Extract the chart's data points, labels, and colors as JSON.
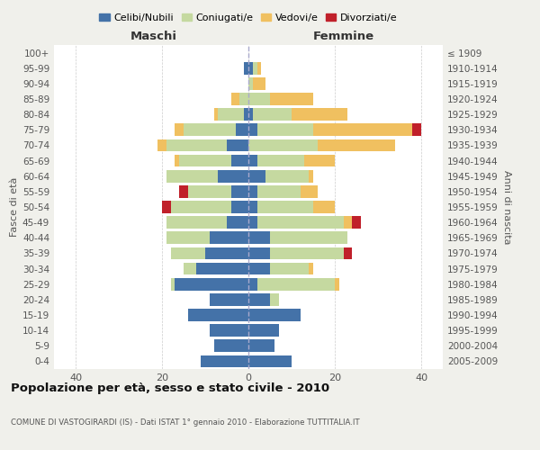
{
  "age_groups": [
    "0-4",
    "5-9",
    "10-14",
    "15-19",
    "20-24",
    "25-29",
    "30-34",
    "35-39",
    "40-44",
    "45-49",
    "50-54",
    "55-59",
    "60-64",
    "65-69",
    "70-74",
    "75-79",
    "80-84",
    "85-89",
    "90-94",
    "95-99",
    "100+"
  ],
  "birth_years": [
    "2005-2009",
    "2000-2004",
    "1995-1999",
    "1990-1994",
    "1985-1989",
    "1980-1984",
    "1975-1979",
    "1970-1974",
    "1965-1969",
    "1960-1964",
    "1955-1959",
    "1950-1954",
    "1945-1949",
    "1940-1944",
    "1935-1939",
    "1930-1934",
    "1925-1929",
    "1920-1924",
    "1915-1919",
    "1910-1914",
    "≤ 1909"
  ],
  "maschi": {
    "celibi": [
      11,
      8,
      9,
      14,
      9,
      17,
      12,
      10,
      9,
      5,
      4,
      4,
      7,
      4,
      5,
      3,
      1,
      0,
      0,
      1,
      0
    ],
    "coniugati": [
      0,
      0,
      0,
      0,
      0,
      1,
      3,
      8,
      10,
      14,
      14,
      10,
      12,
      12,
      14,
      12,
      6,
      2,
      0,
      0,
      0
    ],
    "vedovi": [
      0,
      0,
      0,
      0,
      0,
      0,
      0,
      0,
      0,
      0,
      0,
      0,
      0,
      1,
      2,
      2,
      1,
      2,
      0,
      0,
      0
    ],
    "divorziati": [
      0,
      0,
      0,
      0,
      0,
      0,
      0,
      0,
      0,
      0,
      2,
      2,
      0,
      0,
      0,
      0,
      0,
      0,
      0,
      0,
      0
    ]
  },
  "femmine": {
    "nubili": [
      10,
      6,
      7,
      12,
      5,
      2,
      5,
      5,
      5,
      2,
      2,
      2,
      4,
      2,
      0,
      2,
      1,
      0,
      0,
      1,
      0
    ],
    "coniugate": [
      0,
      0,
      0,
      0,
      2,
      18,
      9,
      17,
      18,
      20,
      13,
      10,
      10,
      11,
      16,
      13,
      9,
      5,
      1,
      1,
      0
    ],
    "vedove": [
      0,
      0,
      0,
      0,
      0,
      1,
      1,
      0,
      0,
      2,
      5,
      4,
      1,
      7,
      18,
      23,
      13,
      10,
      3,
      1,
      0
    ],
    "divorziate": [
      0,
      0,
      0,
      0,
      0,
      0,
      0,
      2,
      0,
      2,
      0,
      0,
      0,
      0,
      0,
      2,
      0,
      0,
      0,
      0,
      0
    ]
  },
  "colors": {
    "celibi_nubili": "#4472a8",
    "coniugati": "#c5d9a0",
    "vedovi": "#f0c060",
    "divorziati": "#c0202a"
  },
  "title": "Popolazione per età, sesso e stato civile - 2010",
  "subtitle": "COMUNE DI VASTOGIRARDI (IS) - Dati ISTAT 1° gennaio 2010 - Elaborazione TUTTITALIA.IT",
  "xlabel_left": "Maschi",
  "xlabel_right": "Femmine",
  "ylabel_left": "Fasce di età",
  "ylabel_right": "Anni di nascita",
  "xlim": 45,
  "legend_labels": [
    "Celibi/Nubili",
    "Coniugati/e",
    "Vedovi/e",
    "Divorziati/e"
  ],
  "background_color": "#f0f0eb",
  "plot_background": "#ffffff"
}
